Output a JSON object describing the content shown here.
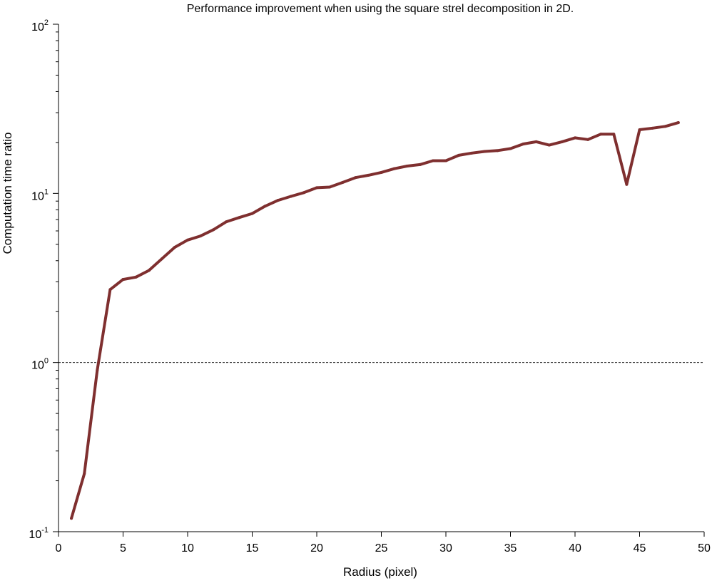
{
  "chart_data": {
    "type": "line",
    "title": "Performance improvement when using the square strel decomposition in 2D.",
    "xlabel": "Radius (pixel)",
    "ylabel": "Computation time ratio",
    "xlim": [
      0,
      50
    ],
    "ylim": [
      0.1,
      100
    ],
    "yscale": "log",
    "grid": false,
    "xticks": [
      "0",
      "5",
      "10",
      "15",
      "20",
      "25",
      "30",
      "35",
      "40",
      "45",
      "50"
    ],
    "yticks": [
      {
        "base": "10",
        "exp": "-1"
      },
      {
        "base": "10",
        "exp": "0"
      },
      {
        "base": "10",
        "exp": "1"
      },
      {
        "base": "10",
        "exp": "2"
      }
    ],
    "reference_line": {
      "y": 1,
      "style": "dashed"
    },
    "series": [
      {
        "color": "#7f2f2f",
        "x": [
          1,
          2,
          3,
          4,
          5,
          6,
          7,
          8,
          9,
          10,
          11,
          12,
          13,
          14,
          15,
          16,
          17,
          18,
          19,
          20,
          21,
          22,
          23,
          24,
          25,
          26,
          27,
          28,
          29,
          30,
          31,
          32,
          33,
          34,
          35,
          36,
          37,
          38,
          39,
          40,
          41,
          42,
          43,
          44,
          45,
          46,
          47,
          48
        ],
        "y": [
          0.12,
          0.22,
          0.9,
          2.7,
          3.1,
          3.2,
          3.5,
          4.1,
          4.8,
          5.3,
          5.6,
          6.1,
          6.8,
          7.2,
          7.6,
          8.4,
          9.1,
          9.6,
          10.1,
          10.8,
          10.9,
          11.6,
          12.4,
          12.8,
          13.3,
          14,
          14.5,
          14.8,
          15.6,
          15.6,
          16.8,
          17.3,
          17.7,
          17.9,
          18.4,
          19.6,
          20.2,
          19.3,
          20.2,
          21.3,
          20.8,
          22.4,
          22.4,
          11.3,
          23.8,
          24.3,
          24.9,
          26.2
        ]
      }
    ]
  }
}
